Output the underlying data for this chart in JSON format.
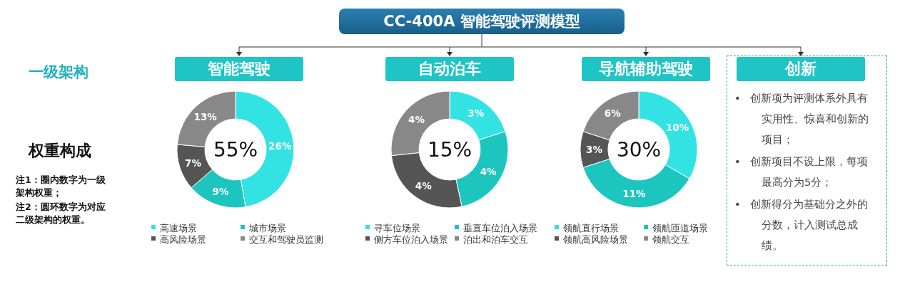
{
  "chart_data": [
    {
      "type": "other",
      "title": "CC-400A 智能驾驶评测模型",
      "annotations": [
        "一级架构",
        "权重构成",
        "注1：圈内数字为一级架构权重；",
        "注2：圆环数字为对应二级架构的权重。"
      ]
    },
    {
      "type": "donut",
      "title": "智能驾驶",
      "annotations": [
        "55%"
      ],
      "categories": [
        "高速场景",
        "城市场景",
        "高风险场景",
        "交互和驾驶员监测"
      ],
      "values": [
        26,
        9,
        7,
        13
      ],
      "value_labels": [
        "26%",
        "9%",
        "7%",
        "13%"
      ],
      "colors": [
        "#33e3e3",
        "#1cc6bf",
        "#555555",
        "#888888"
      ],
      "legend": "bottom"
    },
    {
      "type": "donut",
      "title": "自动泊车",
      "annotations": [
        "15%"
      ],
      "categories": [
        "寻车位场景",
        "垂直车位泊入场景",
        "侧方车位泊入场景",
        "泊出和泊车交互"
      ],
      "values": [
        3,
        4,
        4,
        4
      ],
      "value_labels": [
        "3%",
        "4%",
        "4%",
        "4%"
      ],
      "colors": [
        "#33e3e3",
        "#1cc6bf",
        "#555555",
        "#888888"
      ],
      "legend": "bottom"
    },
    {
      "type": "donut",
      "title": "导航辅助驾驶",
      "annotations": [
        "30%"
      ],
      "categories": [
        "领航直行场景",
        "领航匝道场景",
        "领航高风险场景",
        "领航交互"
      ],
      "values": [
        10,
        11,
        3,
        6
      ],
      "value_labels": [
        "10%",
        "11%",
        "3%",
        "6%"
      ],
      "colors": [
        "#33e3e3",
        "#1cc6bf",
        "#555555",
        "#888888"
      ],
      "legend": "bottom"
    },
    {
      "type": "other",
      "title": "创新",
      "annotations": [
        "•   创新项为评测体系外具有实用性、惊喜和创新的项目；",
        "•   创新项目不设上限，每项最高分为5分；",
        "•   创新得分为基础分之外的分数，计入测试总成绩。"
      ]
    }
  ]
}
